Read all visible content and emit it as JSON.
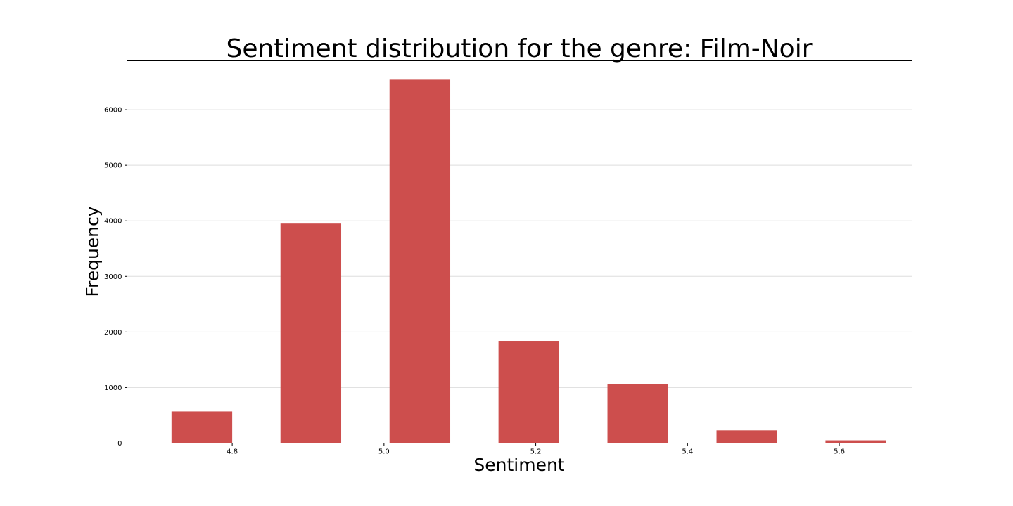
{
  "chart_data": {
    "type": "bar",
    "title": "Sentiment distribution for the genre: Film-Noir",
    "xlabel": "Sentiment",
    "ylabel": "Frequency",
    "xlim": [
      4.6613,
      5.6959
    ],
    "ylim": [
      0,
      6880
    ],
    "x_ticks": [
      4.8,
      5.0,
      5.2,
      5.4,
      5.6
    ],
    "x_tick_labels": [
      "4.8",
      "5.0",
      "5.2",
      "5.4",
      "5.6"
    ],
    "y_ticks": [
      0,
      1000,
      2000,
      3000,
      4000,
      5000,
      6000
    ],
    "y_tick_labels": [
      "0",
      "1000",
      "2000",
      "3000",
      "4000",
      "5000",
      "6000"
    ],
    "bar_width": 0.08,
    "bars": [
      {
        "x": 4.76,
        "value": 570
      },
      {
        "x": 4.9036,
        "value": 3950
      },
      {
        "x": 5.0473,
        "value": 6540
      },
      {
        "x": 5.1909,
        "value": 1840
      },
      {
        "x": 5.3345,
        "value": 1060
      },
      {
        "x": 5.4782,
        "value": 230
      },
      {
        "x": 5.6218,
        "value": 50
      }
    ],
    "grid": {
      "y": true,
      "x": false
    },
    "colors": {
      "bar": "#cd4e4d",
      "grid": "#dddddd",
      "frame": "#000000"
    }
  }
}
